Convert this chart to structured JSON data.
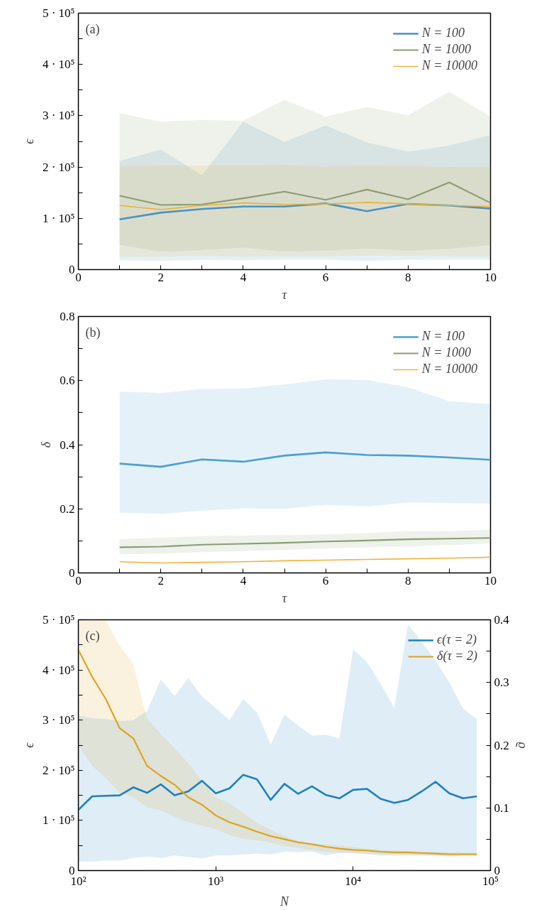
{
  "chart_data": [
    {
      "type": "line",
      "xlabel": "τ",
      "ylabel": "ϵ",
      "annotations": [
        "(a)"
      ],
      "legend": "top right",
      "grid": false,
      "x": [
        1,
        2,
        3,
        4,
        5,
        6,
        7,
        8,
        9,
        10
      ],
      "xlim": [
        0,
        10
      ],
      "xticks": [
        0,
        {
          "value": 1,
          "label": null
        },
        2,
        {
          "value": 3,
          "label": null
        },
        4,
        {
          "value": 5,
          "label": null
        },
        6,
        {
          "value": 7,
          "label": null
        },
        8,
        {
          "value": 9,
          "label": null
        },
        10
      ],
      "ylim": [
        0,
        500000
      ],
      "yticks": [
        {
          "value": 0,
          "label": "0"
        },
        {
          "value": 50000,
          "label": null
        },
        {
          "value": 100000,
          "label": "1 · 10⁵"
        },
        {
          "value": 150000,
          "label": null
        },
        {
          "value": 200000,
          "label": "2 · 10⁵"
        },
        {
          "value": 250000,
          "label": null
        },
        {
          "value": 300000,
          "label": "3 · 10⁵"
        },
        {
          "value": 350000,
          "label": null
        },
        {
          "value": 400000,
          "label": "4 · 10⁵"
        },
        {
          "value": 450000,
          "label": null
        },
        {
          "value": 500000,
          "label": "5 · 10⁵"
        }
      ],
      "series": [
        {
          "name": "N = 100",
          "color": "#4a93c0",
          "values": [
            98000,
            111000,
            118000,
            123000,
            123000,
            129000,
            114000,
            128000,
            125000,
            119000
          ],
          "lower": [
            18000,
            17000,
            19000,
            18000,
            19000,
            19000,
            17000,
            19000,
            19000,
            19000
          ],
          "upper": [
            212000,
            234000,
            184000,
            288000,
            249000,
            281000,
            248000,
            230000,
            242000,
            262000
          ]
        },
        {
          "name": "N = 1000",
          "color": "#8c9c74",
          "values": [
            144000,
            126000,
            127000,
            139000,
            152000,
            136000,
            156000,
            137000,
            170000,
            130000
          ],
          "lower": [
            48000,
            35000,
            38000,
            43000,
            35000,
            37000,
            41000,
            37000,
            40000,
            48000
          ],
          "upper": [
            305000,
            288000,
            292000,
            290000,
            331000,
            298000,
            317000,
            301000,
            347000,
            298000
          ]
        },
        {
          "name": "N = 10000",
          "color": "#e8b23a",
          "values": [
            125000,
            117000,
            125000,
            130000,
            127000,
            128000,
            131000,
            128000,
            125000,
            123000
          ],
          "lower": [
            25000,
            25000,
            27000,
            25000,
            26000,
            26000,
            27000,
            27000,
            26000,
            26000
          ],
          "upper": [
            201000,
            203000,
            203000,
            203000,
            204000,
            201000,
            203000,
            202000,
            200000,
            201000
          ]
        }
      ]
    },
    {
      "type": "line",
      "xlabel": "τ",
      "ylabel": "δ",
      "annotations": [
        "(b)"
      ],
      "legend": "top right",
      "grid": false,
      "x": [
        1,
        2,
        3,
        4,
        5,
        6,
        7,
        8,
        9,
        10
      ],
      "xlim": [
        0,
        10
      ],
      "xticks": [
        0,
        {
          "value": 1,
          "label": null
        },
        2,
        {
          "value": 3,
          "label": null
        },
        4,
        {
          "value": 5,
          "label": null
        },
        6,
        {
          "value": 7,
          "label": null
        },
        8,
        {
          "value": 9,
          "label": null
        },
        10
      ],
      "ylim": [
        0,
        0.8
      ],
      "yticks": [
        0,
        {
          "value": 0.1,
          "label": null
        },
        0.2,
        {
          "value": 0.3,
          "label": null
        },
        0.4,
        {
          "value": 0.5,
          "label": null
        },
        0.6,
        {
          "value": 0.7,
          "label": null
        },
        0.8
      ],
      "series": [
        {
          "name": "N = 100",
          "color": "#4a9fd4",
          "values": [
            0.341,
            0.331,
            0.354,
            0.347,
            0.366,
            0.376,
            0.368,
            0.366,
            0.36,
            0.353
          ],
          "lower": [
            0.188,
            0.184,
            0.194,
            0.201,
            0.2,
            0.212,
            0.207,
            0.22,
            0.218,
            0.216
          ],
          "upper": [
            0.566,
            0.561,
            0.574,
            0.575,
            0.588,
            0.604,
            0.602,
            0.579,
            0.536,
            0.527
          ]
        },
        {
          "name": "N = 1000",
          "color": "#8c9c74",
          "values": [
            0.08,
            0.082,
            0.088,
            0.091,
            0.094,
            0.098,
            0.101,
            0.105,
            0.107,
            0.109
          ],
          "lower": [
            0.058,
            0.06,
            0.065,
            0.068,
            0.072,
            0.076,
            0.08,
            0.083,
            0.087,
            0.092
          ],
          "upper": [
            0.105,
            0.11,
            0.115,
            0.117,
            0.118,
            0.12,
            0.124,
            0.13,
            0.13,
            0.135
          ]
        },
        {
          "name": "N = 10000",
          "color": "#f0b43c",
          "values": [
            0.035,
            0.031,
            0.033,
            0.035,
            0.038,
            0.04,
            0.042,
            0.044,
            0.046,
            0.049
          ]
        }
      ]
    },
    {
      "type": "line",
      "xlabel": "N",
      "ylabel": "ϵ",
      "y2label": "ϱ",
      "annotations": [
        "(c)"
      ],
      "legend": "top right",
      "grid": false,
      "log": "x",
      "xlim": [
        100,
        100000
      ],
      "xticks": [
        {
          "value": 100,
          "label": "10²"
        },
        {
          "value": 1000,
          "label": "10³"
        },
        {
          "value": 10000,
          "label": "10⁴"
        },
        {
          "value": 100000,
          "label": "10⁵"
        }
      ],
      "ylim": [
        0,
        500000
      ],
      "yticks": [
        {
          "value": 0,
          "label": "0"
        },
        {
          "value": 50000,
          "label": null
        },
        {
          "value": 100000,
          "label": "1 · 10⁵"
        },
        {
          "value": 150000,
          "label": null
        },
        {
          "value": 200000,
          "label": "2 · 10⁵"
        },
        {
          "value": 250000,
          "label": null
        },
        {
          "value": 300000,
          "label": "3 · 10⁵"
        },
        {
          "value": 350000,
          "label": null
        },
        {
          "value": 400000,
          "label": "4 · 10⁵"
        },
        {
          "value": 450000,
          "label": null
        },
        {
          "value": 500000,
          "label": "5 · 10⁵"
        }
      ],
      "y2lim": [
        0,
        0.4
      ],
      "y2ticks": [
        0,
        {
          "value": 0.05,
          "label": null
        },
        0.1,
        {
          "value": 0.15,
          "label": null
        },
        0.2,
        {
          "value": 0.25,
          "label": null
        },
        0.3,
        {
          "value": 0.35,
          "label": null
        },
        0.4
      ],
      "series": [
        {
          "name": "ϵ(τ = 2)",
          "color": "#1f80c0",
          "x": [
            100,
            126,
            158,
            200,
            251,
            316,
            398,
            501,
            631,
            794,
            1000,
            1259,
            1585,
            1995,
            2512,
            3162,
            3981,
            5012,
            6310,
            7943,
            10000,
            12589,
            15849,
            19953,
            25119,
            31623,
            39811,
            50119,
            63096,
            79433
          ],
          "values": [
            121000,
            148000,
            149000,
            150000,
            166000,
            155000,
            172000,
            150000,
            158000,
            179000,
            154000,
            164000,
            191000,
            182000,
            141000,
            173000,
            153000,
            168000,
            151000,
            144000,
            161000,
            163000,
            143000,
            135000,
            141000,
            158000,
            177000,
            154000,
            144000,
            148000
          ],
          "lower": [
            18000,
            18000,
            20000,
            20000,
            25000,
            28000,
            25000,
            30000,
            27000,
            24000,
            30000,
            30000,
            32000,
            34000,
            32000,
            38000,
            37000,
            38000,
            30000,
            35000,
            35000,
            33000,
            30000,
            30000,
            30000,
            30000,
            30000,
            28000,
            30000,
            30000
          ],
          "upper": [
            309000,
            304000,
            302000,
            298000,
            300000,
            318000,
            381000,
            348000,
            384000,
            347000,
            324000,
            300000,
            342000,
            315000,
            251000,
            311000,
            289000,
            269000,
            271000,
            263000,
            441000,
            416000,
            372000,
            324000,
            491000,
            455000,
            419000,
            375000,
            323000,
            302000
          ]
        },
        {
          "name": "δ(τ = 2)",
          "color": "#dca21e",
          "axis": "y2",
          "x": [
            100,
            126,
            158,
            200,
            251,
            316,
            398,
            501,
            631,
            794,
            1000,
            1259,
            1585,
            1995,
            2512,
            3162,
            3981,
            5012,
            6310,
            7943,
            10000,
            12589,
            15849,
            19953,
            25119,
            31623,
            39811,
            50119,
            63096,
            79433
          ],
          "values": [
            0.352,
            0.309,
            0.274,
            0.227,
            0.211,
            0.167,
            0.151,
            0.137,
            0.117,
            0.105,
            0.088,
            0.077,
            0.07,
            0.062,
            0.055,
            0.05,
            0.045,
            0.042,
            0.038,
            0.035,
            0.033,
            0.032,
            0.03,
            0.029,
            0.029,
            0.028,
            0.027,
            0.026,
            0.026,
            0.026
          ],
          "lower": [
            0.2,
            0.167,
            0.148,
            0.124,
            0.117,
            0.101,
            0.096,
            0.086,
            0.077,
            0.072,
            0.066,
            0.057,
            0.051,
            0.048,
            0.045,
            0.039,
            0.036,
            0.033,
            0.03,
            0.029,
            0.028,
            0.027,
            0.026,
            0.025,
            0.025,
            0.024,
            0.024,
            0.023,
            0.023,
            0.023
          ],
          "upper": [
            0.4,
            0.4,
            0.4,
            0.359,
            0.33,
            0.242,
            0.218,
            0.195,
            0.171,
            0.143,
            0.117,
            0.107,
            0.092,
            0.076,
            0.065,
            0.055,
            0.048,
            0.044,
            0.042,
            0.04,
            0.038,
            0.035,
            0.033,
            0.032,
            0.031,
            0.03,
            0.03,
            0.029,
            0.029,
            0.028
          ]
        }
      ]
    }
  ]
}
